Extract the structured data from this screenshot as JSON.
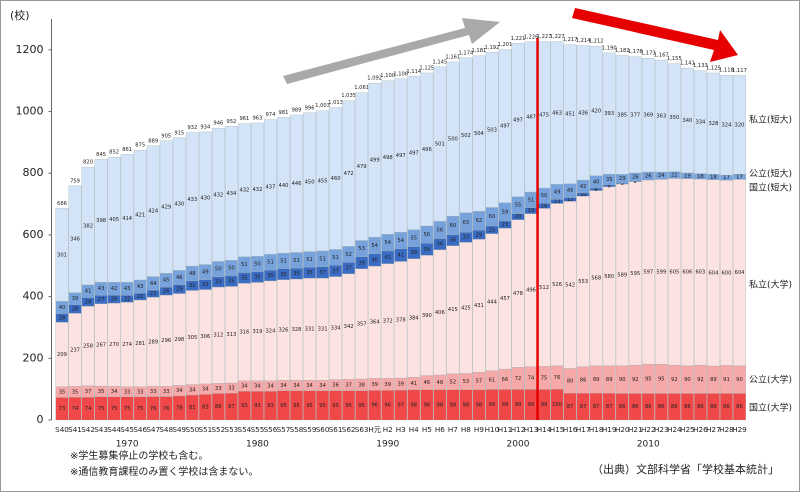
{
  "chart_data": {
    "type": "bar",
    "stacked": true,
    "y_label": "(校)",
    "categories": [
      "S40",
      "S41",
      "S42",
      "S43",
      "S44",
      "S45",
      "S46",
      "S47",
      "S48",
      "S49",
      "S50",
      "S51",
      "S52",
      "S53",
      "S54",
      "S55",
      "S56",
      "S57",
      "S58",
      "S59",
      "S60",
      "S61",
      "S62",
      "S63",
      "H元",
      "H2",
      "H3",
      "H4",
      "H5",
      "H6",
      "H7",
      "H8",
      "H9",
      "H10",
      "H11",
      "H12",
      "H13",
      "H14",
      "H15",
      "H16",
      "H17",
      "H18",
      "H19",
      "H20",
      "H21",
      "H22",
      "H23",
      "H24",
      "H25",
      "H26",
      "H27",
      "H28",
      "H29"
    ],
    "decades": [
      1970,
      1980,
      1990,
      2000,
      2010
    ],
    "ylim": [
      0,
      1300
    ],
    "yticks": [
      0,
      200,
      400,
      600,
      800,
      1000,
      1200
    ],
    "grid": false,
    "series": [
      {
        "name": "国立(大学)",
        "color": "#f04848",
        "values": [
          73,
          74,
          74,
          75,
          75,
          75,
          75,
          76,
          76,
          78,
          81,
          83,
          86,
          87,
          93,
          93,
          93,
          95,
          95,
          95,
          95,
          95,
          95,
          95,
          96,
          96,
          97,
          98,
          98,
          98,
          98,
          98,
          98,
          99,
          99,
          99,
          99,
          99,
          100,
          87,
          87,
          87,
          87,
          86,
          86,
          86,
          86,
          86,
          86,
          86,
          86,
          86,
          86
        ]
      },
      {
        "name": "公立(大学)",
        "color": "#f7a8a8",
        "values": [
          35,
          35,
          37,
          35,
          34,
          33,
          33,
          33,
          33,
          34,
          34,
          34,
          33,
          33,
          34,
          34,
          34,
          34,
          34,
          34,
          34,
          36,
          37,
          38,
          39,
          39,
          39,
          41,
          46,
          48,
          52,
          53,
          57,
          61,
          66,
          72,
          74,
          75,
          76,
          80,
          86,
          89,
          89,
          90,
          92,
          95,
          95,
          92,
          90,
          92,
          89,
          91,
          90
        ]
      },
      {
        "name": "私立(大学)",
        "color": "#fde2e2",
        "values": [
          209,
          237,
          258,
          267,
          270,
          274,
          281,
          289,
          296,
          298,
          305,
          306,
          312,
          313,
          316,
          319,
          324,
          326,
          328,
          331,
          331,
          334,
          342,
          357,
          364,
          372,
          378,
          384,
          390,
          406,
          415,
          425,
          431,
          444,
          457,
          478,
          496,
          512,
          526,
          542,
          553,
          568,
          580,
          589,
          595,
          597,
          599,
          605,
          606,
          603,
          604,
          600,
          604
        ]
      },
      {
        "name": "国立(短大)",
        "color": "#3b6cc4",
        "values": [
          28,
          28,
          28,
          27,
          26,
          22,
          22,
          23,
          26,
          29,
          31,
          32,
          33,
          35,
          35,
          35,
          35,
          35,
          35,
          35,
          37,
          37,
          37,
          39,
          40,
          41,
          41,
          39,
          39,
          36,
          36,
          33,
          29,
          25,
          23,
          20,
          19,
          16,
          13,
          12,
          10,
          8,
          6,
          3,
          2,
          0,
          0,
          0,
          0,
          0,
          0,
          0,
          0
        ]
      },
      {
        "name": "公立(短大)",
        "color": "#78a2dc",
        "values": [
          40,
          39,
          41,
          43,
          42,
          43,
          43,
          44,
          45,
          46,
          48,
          49,
          50,
          50,
          51,
          50,
          51,
          51,
          51,
          51,
          51,
          51,
          52,
          53,
          54,
          54,
          54,
          55,
          56,
          56,
          60,
          63,
          62,
          60,
          59,
          55,
          51,
          50,
          49,
          45,
          42,
          40,
          35,
          29,
          26,
          26,
          24,
          22,
          19,
          18,
          18,
          17,
          17
        ]
      },
      {
        "name": "私立(短大)",
        "color": "#d3e3f8",
        "values": [
          301,
          346,
          382,
          398,
          405,
          414,
          421,
          424,
          429,
          430,
          433,
          430,
          432,
          434,
          432,
          432,
          437,
          440,
          446,
          450,
          455,
          460,
          472,
          479,
          499,
          498,
          497,
          497,
          496,
          501,
          500,
          502,
          504,
          503,
          497,
          497,
          487,
          475,
          463,
          451,
          436,
          420,
          393,
          385,
          377,
          369,
          363,
          350,
          340,
          334,
          328,
          324,
          320
        ]
      }
    ],
    "totals": {
      "values": [
        686,
        759,
        820,
        845,
        852,
        861,
        875,
        889,
        905,
        915,
        932,
        934,
        946,
        952,
        961,
        963,
        974,
        981,
        989,
        996,
        1003,
        1013,
        1035,
        1061,
        1092,
        1100,
        1106,
        1114,
        1125,
        1145,
        1161,
        1174,
        1181,
        1192,
        1201,
        1221,
        1226,
        1227,
        1227,
        1217,
        1214,
        1212,
        1190,
        1182,
        1178,
        1173,
        1167,
        1155,
        1141,
        1133,
        1125,
        1118,
        1117
      ],
      "value_labels": [
        "686",
        "759",
        "820",
        "845",
        "852",
        "861",
        "875",
        "889",
        "905",
        "915",
        "932",
        "934",
        "946",
        "952",
        "961",
        "963",
        "974",
        "981",
        "989",
        "996",
        "1,003",
        "1,013",
        "1,035",
        "1,061",
        "1,092",
        "1,100",
        "1,106",
        "1,114",
        "1,125",
        "1,145",
        "1,161",
        "1,174",
        "1,181",
        "1,192",
        "1,201",
        "1,221",
        "1,226",
        "1,227",
        "1,227",
        "1,217",
        "1,214",
        "1,212",
        "1,190",
        "1,182",
        "1,178",
        "1,173",
        "1,167",
        "1,155",
        "1,141",
        "1,133",
        "1,125",
        "1,118",
        "1,117"
      ]
    },
    "notes": [
      "※学生募集停止の学校も含む。",
      "※通信教育課程のみ置く学校は含まない。"
    ],
    "source": "（出典）文部科学省「学校基本統計」"
  }
}
